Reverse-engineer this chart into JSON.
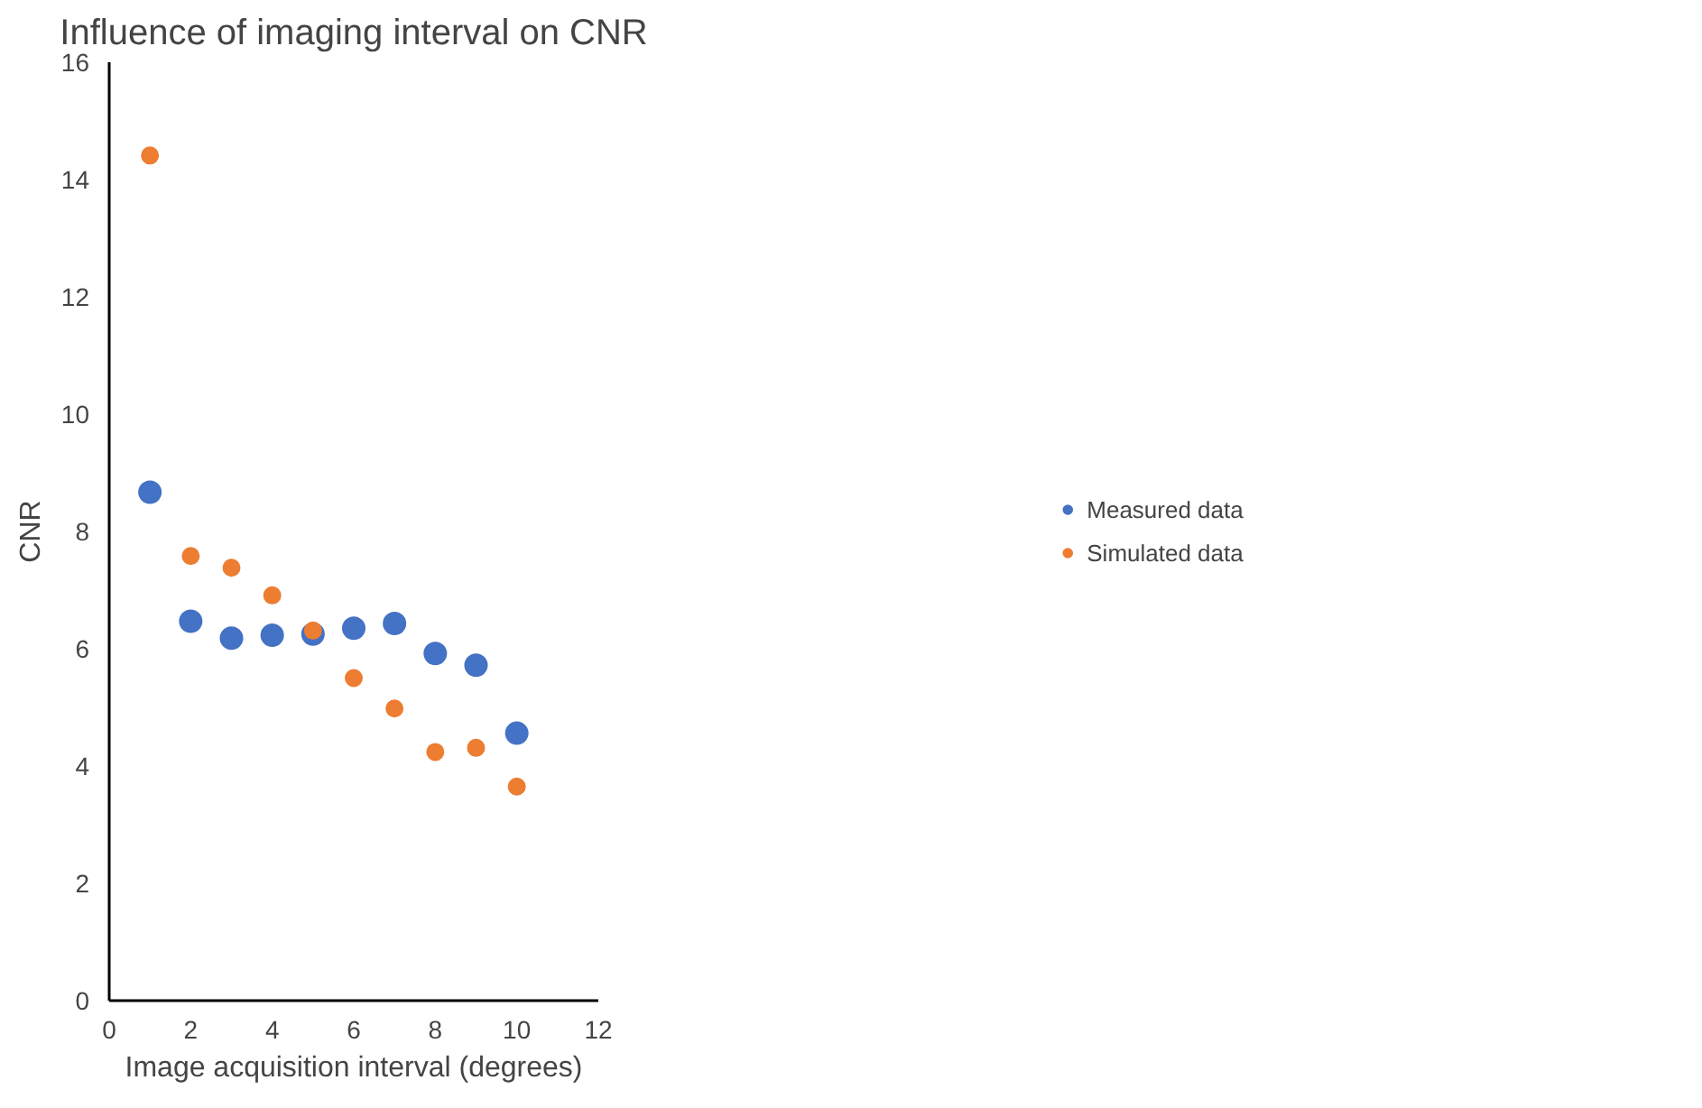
{
  "chart_data": {
    "type": "scatter",
    "title": "Influence of imaging interval on CNR",
    "xlabel": "Image acquisition interval (degrees)",
    "ylabel": "CNR",
    "xlim": [
      0,
      12
    ],
    "xticks": [
      0,
      2,
      4,
      6,
      8,
      10,
      12
    ],
    "ylim": [
      0,
      16
    ],
    "yticks": [
      0,
      2,
      4,
      6,
      8,
      10,
      12,
      14,
      16
    ],
    "x": [
      1,
      2,
      3,
      4,
      5,
      6,
      7,
      8,
      9,
      10
    ],
    "series": [
      {
        "name": "Measured data",
        "color": "#4472c4",
        "values": [
          8.67,
          6.47,
          6.18,
          6.23,
          6.25,
          6.35,
          6.43,
          5.92,
          5.72,
          4.56
        ]
      },
      {
        "name": "Simulated data",
        "color": "#ed7d31",
        "values": [
          14.41,
          7.58,
          7.38,
          6.91,
          6.31,
          5.5,
          4.98,
          4.24,
          4.31,
          3.65
        ]
      }
    ],
    "grid": false,
    "legend": "right",
    "marker": "circle"
  }
}
